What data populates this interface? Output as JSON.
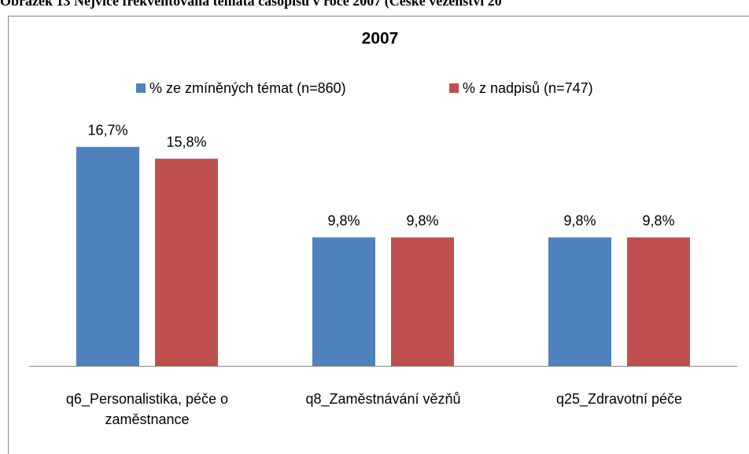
{
  "caption": "Obrázek 13 Nejvíce frekventovaná témata časopisu v roce 2007 (České vězeňství 20",
  "chart_data": {
    "type": "bar",
    "title": "2007",
    "categories": [
      "q6_Personalistika, péče o zaměstnance",
      "q8_Zaměstnávání vězňů",
      "q25_Zdravotní péče"
    ],
    "series": [
      {
        "name": "% ze zmíněných témat (n=860)",
        "color": "#4f81bd",
        "values": [
          16.7,
          9.8,
          9.8
        ],
        "value_labels": [
          "16,7%",
          "9,8%",
          "9,8%"
        ]
      },
      {
        "name": "% z nadpisů (n=747)",
        "color": "#c0504d",
        "values": [
          15.8,
          9.8,
          9.8
        ],
        "value_labels": [
          "15,8%",
          "9,8%",
          "9,8%"
        ]
      }
    ],
    "ylim": [
      0,
      18
    ]
  }
}
